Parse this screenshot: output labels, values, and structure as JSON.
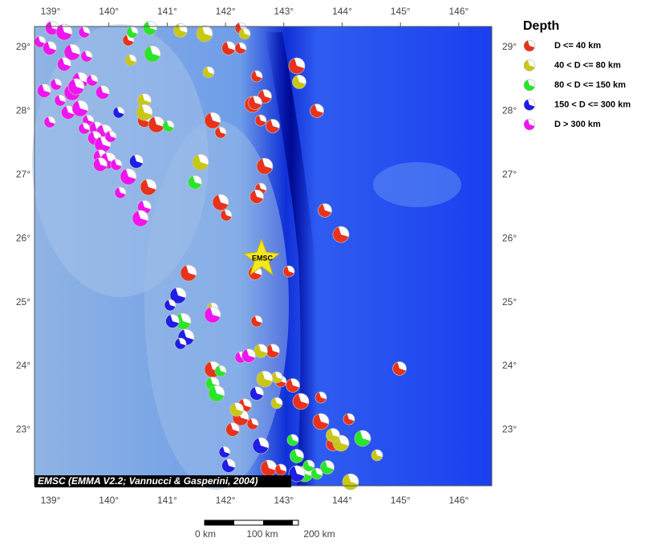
{
  "map": {
    "lon_labels": [
      "139°",
      "140°",
      "141°",
      "142°",
      "143°",
      "144°",
      "145°",
      "146°"
    ],
    "lat_labels": [
      "29°",
      "28°",
      "27°",
      "26°",
      "25°",
      "24°",
      "23°"
    ],
    "marker": "EMSC",
    "credit": "EMSC (EMMA V2.2; Vannucci & Gasperini, 2004)"
  },
  "legend": {
    "title": "Depth",
    "items": [
      {
        "label": "D <= 40 km",
        "color": "#e8321c"
      },
      {
        "label": "40 < D <= 80 km",
        "color": "#c8c814"
      },
      {
        "label": "80 < D <= 150 km",
        "color": "#28e628"
      },
      {
        "label": "150 < D <= 300 km",
        "color": "#1e1ee6"
      },
      {
        "label": "D > 300 km",
        "color": "#f014f0"
      }
    ]
  },
  "scale_bar": [
    "0 km",
    "100 km",
    "200 km"
  ]
}
